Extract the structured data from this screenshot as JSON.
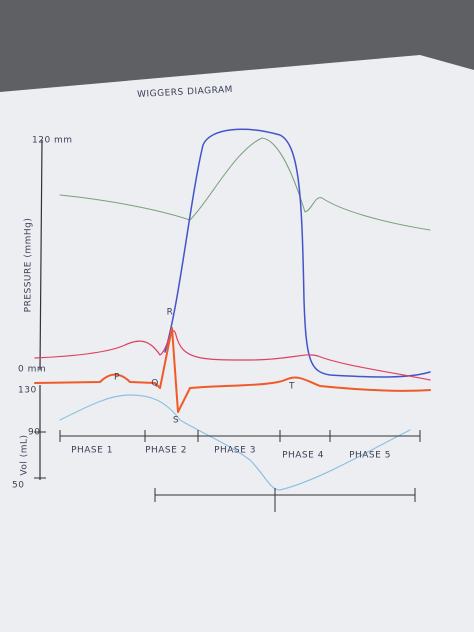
{
  "title": "WIGGERS DIAGRAM",
  "pressure_axis": {
    "label": "PRESSURE (mmHg)",
    "top": "120 mm",
    "bottom": "0 mm"
  },
  "volume_axis": {
    "label": "Vol (mL)",
    "ticks": [
      "130",
      "90",
      "50"
    ]
  },
  "ecg_labels": [
    "P",
    "Q",
    "R",
    "S",
    "T"
  ],
  "phases": [
    "PHASE 1",
    "PHASE 2",
    "PHASE 3",
    "PHASE 4",
    "PHASE 5"
  ]
}
